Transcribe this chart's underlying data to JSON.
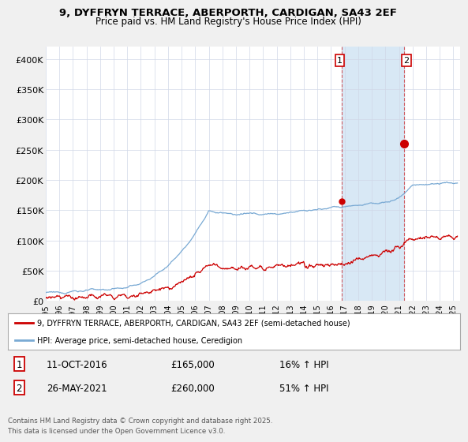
{
  "title_line1": "9, DYFFRYN TERRACE, ABERPORTH, CARDIGAN, SA43 2EF",
  "title_line2": "Price paid vs. HM Land Registry's House Price Index (HPI)",
  "ylabel_ticks": [
    "£0",
    "£50K",
    "£100K",
    "£150K",
    "£200K",
    "£250K",
    "£300K",
    "£350K",
    "£400K"
  ],
  "ytick_values": [
    0,
    50000,
    100000,
    150000,
    200000,
    250000,
    300000,
    350000,
    400000
  ],
  "ylim": [
    0,
    420000
  ],
  "xlim_start": 1995.0,
  "xlim_end": 2025.5,
  "hpi_color": "#7aaad4",
  "price_color": "#cc0000",
  "shade_color": "#d8e8f5",
  "transaction1_date": "11-OCT-2016",
  "transaction1_price": 165000,
  "transaction1_pct": "16%",
  "transaction2_date": "26-MAY-2021",
  "transaction2_price": 260000,
  "transaction2_pct": "51%",
  "legend_label1": "9, DYFFRYN TERRACE, ABERPORTH, CARDIGAN, SA43 2EF (semi-detached house)",
  "legend_label2": "HPI: Average price, semi-detached house, Ceredigion",
  "footer": "Contains HM Land Registry data © Crown copyright and database right 2025.\nThis data is licensed under the Open Government Licence v3.0.",
  "marker1_x": 2016.79,
  "marker2_x": 2021.4,
  "background_color": "#f0f0f0",
  "plot_bg_color": "#ffffff"
}
